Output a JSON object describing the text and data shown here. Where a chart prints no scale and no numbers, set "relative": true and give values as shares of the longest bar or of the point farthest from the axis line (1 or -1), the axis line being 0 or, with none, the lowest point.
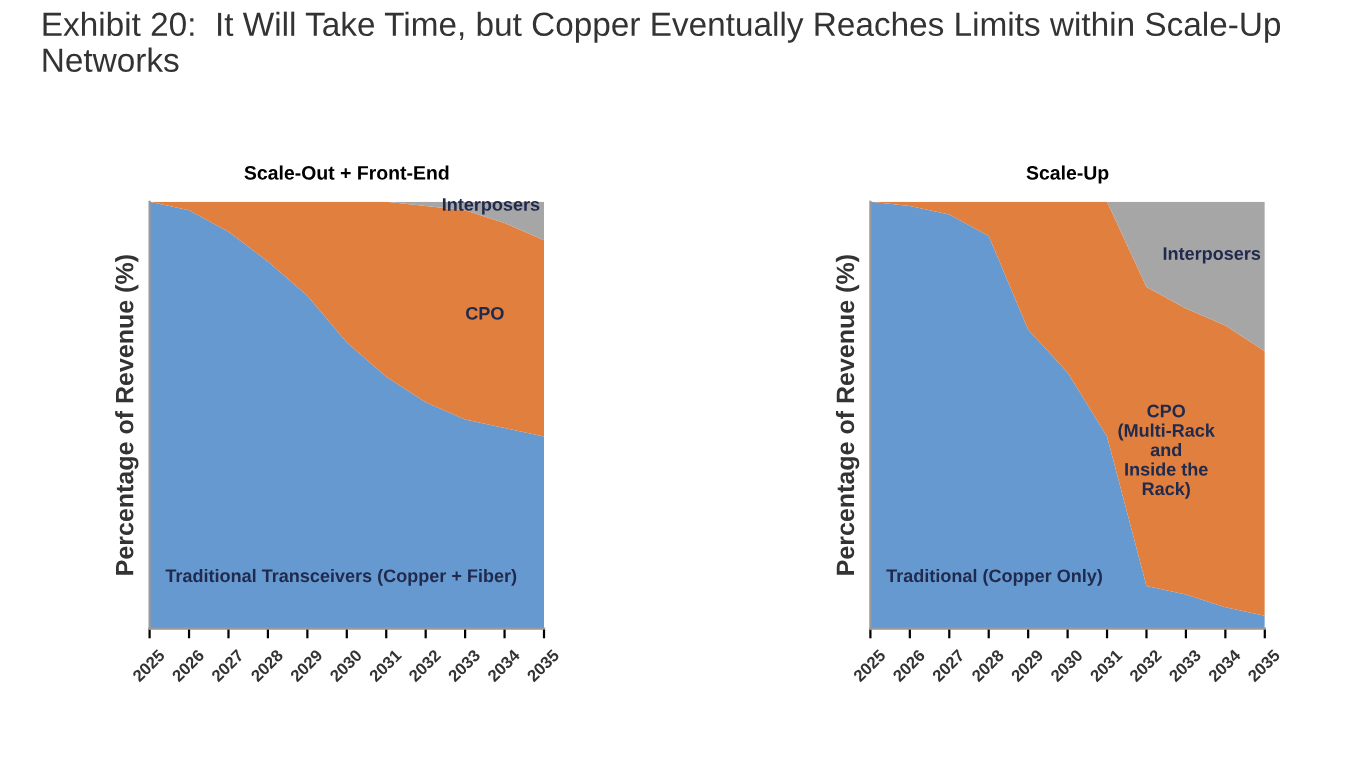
{
  "chart_data": [
    {
      "type": "area",
      "stacked": true,
      "relative": true,
      "title": "Exhibit 20:  It Will Take Time, but Copper Eventually Reaches Limits within Scale-Up Networks",
      "subtitle": "Scale-Out + Front-End",
      "ylabel": "Percentage of Revenue (%)",
      "categories": [
        "2025",
        "2026",
        "2027",
        "2028",
        "2029",
        "2030",
        "2031",
        "2032",
        "2033",
        "2034",
        "2035"
      ],
      "series": [
        {
          "name": "Traditional Transceivers (Copper + Fiber)",
          "color": "#6699d0",
          "values": [
            1.0,
            0.98,
            0.93,
            0.86,
            0.78,
            0.67,
            0.59,
            0.53,
            0.49,
            0.47,
            0.45
          ]
        },
        {
          "name": "CPO",
          "color": "#e07f3e",
          "values": [
            0,
            0.02,
            0.07,
            0.14,
            0.22,
            0.33,
            0.41,
            0.46,
            0.49,
            0.48,
            0.46
          ]
        },
        {
          "name": "Interposers",
          "color": "#a6a6a6",
          "values": [
            0,
            0,
            0,
            0,
            0,
            0,
            0,
            0.01,
            0.02,
            0.05,
            0.09
          ]
        }
      ]
    },
    {
      "type": "area",
      "stacked": true,
      "relative": true,
      "subtitle": "Scale-Up",
      "ylabel": "Percentage of Revenue (%)",
      "categories": [
        "2025",
        "2026",
        "2027",
        "2028",
        "2029",
        "2030",
        "2031",
        "2032",
        "2033",
        "2034",
        "2035"
      ],
      "series": [
        {
          "name": "Traditional (Copper Only)",
          "color": "#6699d0",
          "values": [
            1.0,
            0.99,
            0.97,
            0.92,
            0.7,
            0.6,
            0.45,
            0.1,
            0.08,
            0.05,
            0.03
          ]
        },
        {
          "name": "CPO\n(Multi-Rack\nand\nInside the\nRack)",
          "color": "#e07f3e",
          "values": [
            0,
            0.01,
            0.03,
            0.08,
            0.3,
            0.4,
            0.55,
            0.7,
            0.67,
            0.66,
            0.62
          ]
        },
        {
          "name": "Interposers",
          "color": "#a6a6a6",
          "values": [
            0,
            0,
            0,
            0,
            0,
            0,
            0,
            0.2,
            0.25,
            0.29,
            0.35
          ]
        }
      ]
    }
  ]
}
